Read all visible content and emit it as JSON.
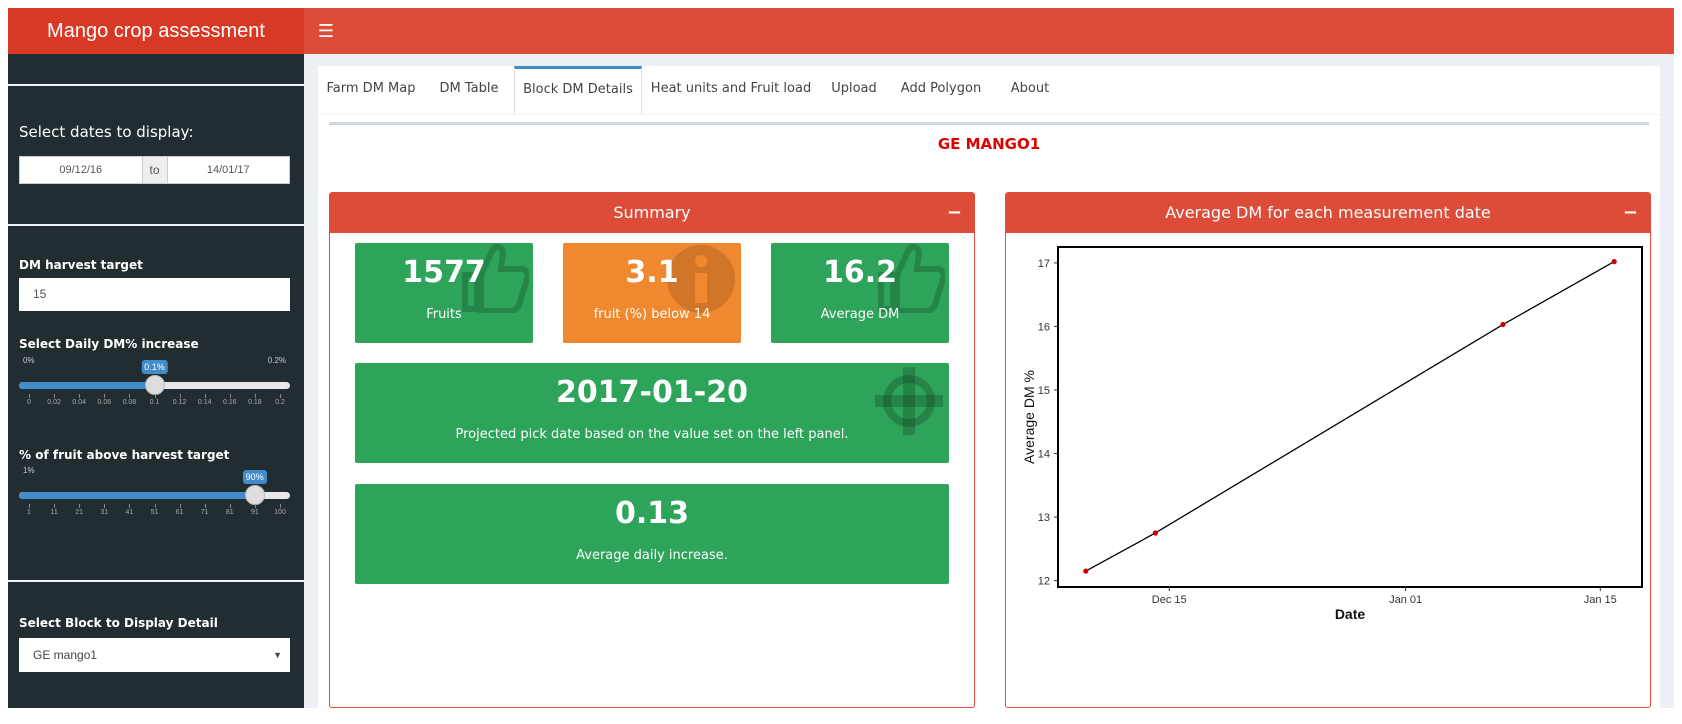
{
  "app": {
    "title": "Mango crop assessment"
  },
  "header": {
    "menu_icon": "hamburger-icon"
  },
  "sidebar": {
    "dates_label": "Select dates to display:",
    "date_from": "09/12/16",
    "date_sep": "to",
    "date_to": "14/01/17",
    "dm_target_label": "DM harvest target",
    "dm_target_value": "15",
    "daily_inc": {
      "label": "Select Daily DM% increase",
      "min_label": "0%",
      "max_label": "0.2%",
      "value_label": "0.1%",
      "value_fraction": 0.5,
      "ticks": [
        "0",
        "0.02",
        "0.04",
        "0.06",
        "0.08",
        "0.1",
        "0.12",
        "0.14",
        "0.16",
        "0.18",
        "0.2"
      ]
    },
    "pct_above": {
      "label": "% of fruit above harvest target",
      "min_label": "1%",
      "value_label": "90%",
      "value_fraction": 0.899,
      "ticks": [
        "1",
        "11",
        "21",
        "31",
        "41",
        "51",
        "61",
        "71",
        "81",
        "91",
        "100"
      ]
    },
    "block_select_label": "Select Block to Display Detail",
    "block_select_value": "GE mango1"
  },
  "tabs": [
    {
      "label": "Farm DM Map",
      "active": false
    },
    {
      "label": "DM Table",
      "active": false
    },
    {
      "label": "Block DM Details",
      "active": true
    },
    {
      "label": "Heat units and Fruit load",
      "active": false
    },
    {
      "label": "Upload",
      "active": false
    },
    {
      "label": "Add Polygon",
      "active": false
    },
    {
      "label": "About",
      "active": false
    }
  ],
  "block_title": "GE MANGO1",
  "summary": {
    "title": "Summary",
    "collapse": "−",
    "fruits": {
      "value": "1577",
      "label": "Fruits",
      "icon": "thumbs-up-icon"
    },
    "below": {
      "value": "3.1",
      "label": "fruit (%) below 14",
      "icon": "info-icon"
    },
    "avg_dm": {
      "value": "16.2",
      "label": "Average DM",
      "icon": "thumbs-up-icon"
    },
    "pick_date": {
      "value": "2017-01-20",
      "label": "Projected pick date based on the value set on the left panel.",
      "icon": "crosshairs-icon"
    },
    "daily_increase": {
      "value": "0.13",
      "label": "Average daily increase."
    }
  },
  "chart_box": {
    "title": "Average DM for each measurement date",
    "collapse": "−"
  },
  "colors": {
    "red": "#dd4b39",
    "green": "#2ea35a",
    "orange": "#f0882f",
    "blue": "#428bca",
    "sidebar": "#222d32",
    "point": "#cc0000"
  },
  "chart_data": {
    "type": "line",
    "xlabel": "Date",
    "ylabel": "Average DM %",
    "x_dates": [
      "2016-12-09",
      "2016-12-14",
      "2017-01-08",
      "2017-01-16"
    ],
    "values": [
      12.15,
      12.75,
      16.03,
      17.02
    ],
    "x_ticks": [
      {
        "date": "2016-12-15",
        "label": "Dec 15"
      },
      {
        "date": "2017-01-01",
        "label": "Jan 01"
      },
      {
        "date": "2017-01-15",
        "label": "Jan 15"
      }
    ],
    "y_ticks": [
      12,
      13,
      14,
      15,
      16,
      17
    ],
    "xlim": [
      "2016-12-07",
      "2017-01-18"
    ],
    "ylim": [
      11.9,
      17.25
    ],
    "grid": false
  }
}
